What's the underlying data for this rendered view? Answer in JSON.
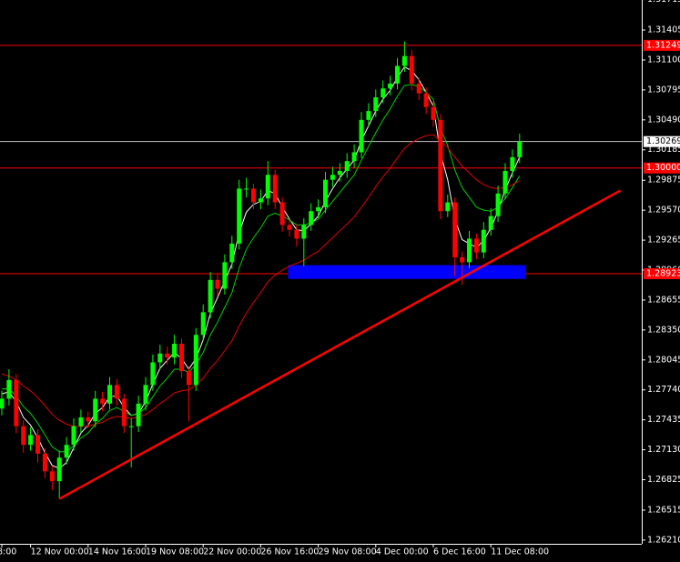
{
  "chart_data": {
    "type": "candlestick",
    "background": "#000000",
    "axis_color": "#ffffff",
    "up_color": "#00ff00",
    "down_color": "#ff0000",
    "categories": [
      "8:00",
      null,
      null,
      null,
      "12 Nov 00:00",
      null,
      null,
      null,
      null,
      null,
      null,
      null,
      "14 Nov 16:00",
      null,
      null,
      null,
      null,
      null,
      null,
      null,
      "19 Nov 08:00",
      null,
      null,
      null,
      null,
      null,
      null,
      null,
      "22 Nov 00:00",
      null,
      null,
      null,
      null,
      null,
      null,
      null,
      "26 Nov 16:00",
      null,
      null,
      null,
      null,
      null,
      null,
      null,
      "29 Nov 08:00",
      null,
      null,
      null,
      null,
      null,
      null,
      null,
      "4 Dec 00:00",
      null,
      null,
      null,
      null,
      null,
      null,
      null,
      "6 Dec 16:00",
      null,
      null,
      null,
      null,
      null,
      null,
      null,
      "11 Dec 08:00",
      null,
      null,
      null,
      null
    ],
    "open": [
      1.2755,
      1.2765,
      1.2784,
      1.2737,
      1.2718,
      1.2728,
      1.2709,
      1.2691,
      1.2681,
      1.2705,
      1.2718,
      1.2737,
      1.2746,
      1.2742,
      1.2765,
      1.276,
      1.2779,
      1.2765,
      1.2737,
      1.2737,
      1.276,
      1.2779,
      1.2802,
      1.2811,
      1.2807,
      1.2821,
      1.2793,
      1.2779,
      1.283,
      1.2853,
      1.2886,
      1.2877,
      1.2904,
      1.2923,
      1.2979,
      1.2979,
      1.2965,
      1.2969,
      1.2993,
      1.2965,
      1.2942,
      1.2937,
      1.2928,
      1.2942,
      1.2956,
      1.296,
      1.2988,
      1.2993,
      1.2997,
      1.3007,
      1.3016,
      1.3049,
      1.3058,
      1.3072,
      1.3081,
      1.3086,
      1.3104,
      1.3114,
      1.3086,
      1.3076,
      1.3062,
      1.3049,
      1.2956,
      1.2965,
      1.2909,
      1.2904,
      1.2928,
      1.2914,
      1.2937,
      1.2951,
      1.2974,
      1.2997,
      1.3011
    ],
    "high": [
      1.2773,
      1.2795,
      1.279,
      1.2743,
      1.2736,
      1.2734,
      1.2715,
      1.2697,
      1.2712,
      1.2726,
      1.2745,
      1.2754,
      1.2752,
      1.2773,
      1.2772,
      1.2787,
      1.2785,
      1.277,
      1.2745,
      1.2768,
      1.2787,
      1.281,
      1.282,
      1.2818,
      1.283,
      1.2826,
      1.2798,
      1.2837,
      1.2861,
      1.2894,
      1.2892,
      1.2912,
      1.2931,
      1.2988,
      1.299,
      1.2984,
      1.2978,
      1.3007,
      1.2998,
      1.297,
      1.2948,
      1.2943,
      1.2949,
      1.2964,
      1.2968,
      1.2996,
      1.3001,
      1.3005,
      1.3015,
      1.3024,
      1.3057,
      1.3066,
      1.308,
      1.3089,
      1.3094,
      1.3112,
      1.3129,
      1.312,
      1.3092,
      1.3082,
      1.3068,
      1.3055,
      1.2973,
      1.297,
      1.2915,
      1.2936,
      1.2933,
      1.2945,
      1.2959,
      1.2982,
      1.3005,
      1.3019,
      1.3035
    ],
    "low": [
      1.2748,
      1.2758,
      1.273,
      1.271,
      1.2712,
      1.27,
      1.2684,
      1.2672,
      1.2663,
      1.2698,
      1.2712,
      1.273,
      1.2735,
      1.2736,
      1.2752,
      1.2754,
      1.2758,
      1.273,
      1.2695,
      1.2731,
      1.2753,
      1.2773,
      1.2795,
      1.28,
      1.28,
      1.2786,
      1.2742,
      1.2773,
      1.2824,
      1.2847,
      1.2869,
      1.2871,
      1.2897,
      1.2917,
      1.297,
      1.2958,
      1.2958,
      1.2962,
      1.2958,
      1.2935,
      1.293,
      1.292,
      1.29,
      1.2936,
      1.2949,
      1.2954,
      1.2981,
      1.2986,
      1.299,
      1.3,
      1.301,
      1.3042,
      1.3052,
      1.3066,
      1.3074,
      1.308,
      1.3098,
      1.3079,
      1.3069,
      1.3055,
      1.3042,
      1.2948,
      1.295,
      1.289,
      1.2881,
      1.2898,
      1.2907,
      1.2908,
      1.2931,
      1.2945,
      1.2968,
      1.299,
      1.3005
    ],
    "close": [
      1.2765,
      1.2784,
      1.2737,
      1.2718,
      1.2728,
      1.2709,
      1.2691,
      1.2681,
      1.2705,
      1.2718,
      1.2737,
      1.2746,
      1.2742,
      1.2765,
      1.276,
      1.2779,
      1.2765,
      1.2737,
      1.2737,
      1.276,
      1.2779,
      1.2802,
      1.2811,
      1.2807,
      1.2821,
      1.2793,
      1.2779,
      1.283,
      1.2853,
      1.2886,
      1.2877,
      1.2904,
      1.2923,
      1.2979,
      1.2979,
      1.2965,
      1.2969,
      1.2993,
      1.2965,
      1.2942,
      1.2937,
      1.2928,
      1.2942,
      1.2956,
      1.296,
      1.2988,
      1.2993,
      1.2997,
      1.3007,
      1.3016,
      1.3049,
      1.3058,
      1.3072,
      1.3081,
      1.3086,
      1.3104,
      1.3114,
      1.3086,
      1.3076,
      1.3062,
      1.3049,
      1.2956,
      1.2965,
      1.2909,
      1.2904,
      1.2928,
      1.2914,
      1.2937,
      1.2951,
      1.2974,
      1.2997,
      1.3011,
      1.3027
    ],
    "lines": [
      {
        "color": "#ffffff",
        "values": [
          1.277,
          1.2772,
          1.2762,
          1.2746,
          1.2738,
          1.2725,
          1.271,
          1.2697,
          1.2694,
          1.27,
          1.2715,
          1.273,
          1.2738,
          1.275,
          1.2756,
          1.2767,
          1.2768,
          1.2756,
          1.2748,
          1.275,
          1.2762,
          1.278,
          1.2796,
          1.2804,
          1.2812,
          1.2806,
          1.2795,
          1.2806,
          1.2825,
          1.2852,
          1.2868,
          1.2885,
          1.2902,
          1.2934,
          1.2955,
          1.2963,
          1.2966,
          1.2977,
          1.2974,
          1.296,
          1.2948,
          1.2937,
          1.2936,
          1.2943,
          1.2951,
          1.2966,
          1.2979,
          1.299,
          1.2999,
          1.3008,
          1.3028,
          1.3043,
          1.3058,
          1.307,
          1.3079,
          1.3092,
          1.3103,
          1.3099,
          1.309,
          1.3077,
          1.3063,
          1.3015,
          1.2988,
          1.2948,
          1.2927,
          1.2923,
          1.2919,
          1.2926,
          1.2939,
          1.2956,
          1.2978,
          1.2995,
          1.3011
        ]
      },
      {
        "color": "#00d000",
        "values": [
          1.2775,
          1.2775,
          1.2768,
          1.2757,
          1.275,
          1.274,
          1.2728,
          1.2716,
          1.2711,
          1.2711,
          1.2717,
          1.2725,
          1.273,
          1.2739,
          1.2745,
          1.2753,
          1.2756,
          1.2752,
          1.2748,
          1.275,
          1.2756,
          1.2767,
          1.2778,
          1.2786,
          1.2795,
          1.2795,
          1.2792,
          1.28,
          1.2812,
          1.283,
          1.2843,
          1.2858,
          1.2873,
          1.2898,
          1.2917,
          1.2929,
          1.2939,
          1.2951,
          1.2954,
          1.2951,
          1.2947,
          1.2942,
          1.2942,
          1.2944,
          1.2948,
          1.2957,
          1.2966,
          1.2975,
          1.2984,
          1.2993,
          1.3008,
          1.3022,
          1.3036,
          1.3049,
          1.306,
          1.3073,
          1.3084,
          1.3085,
          1.3083,
          1.3077,
          1.307,
          1.304,
          1.3023,
          1.2998,
          1.298,
          1.297,
          1.296,
          1.2957,
          1.2956,
          1.296,
          1.2969,
          1.298,
          1.2992
        ]
      },
      {
        "color": "#e00000",
        "values": [
          1.279,
          1.2788,
          1.2784,
          1.2778,
          1.2773,
          1.2766,
          1.2758,
          1.2749,
          1.2743,
          1.2739,
          1.2737,
          1.2737,
          1.2737,
          1.2739,
          1.2741,
          1.2745,
          1.2747,
          1.2746,
          1.2745,
          1.2746,
          1.2749,
          1.2754,
          1.276,
          1.2765,
          1.2771,
          1.2773,
          1.2774,
          1.2779,
          1.2786,
          1.2796,
          1.2804,
          1.2814,
          1.2824,
          1.2839,
          1.2852,
          1.2863,
          1.2873,
          1.2884,
          1.2891,
          1.2896,
          1.29,
          1.2903,
          1.2906,
          1.2911,
          1.2915,
          1.2922,
          1.2929,
          1.2936,
          1.2943,
          1.295,
          1.296,
          1.297,
          1.2981,
          1.2991,
          1.3,
          1.301,
          1.302,
          1.3026,
          1.303,
          1.3033,
          1.3034,
          1.3027,
          1.3021,
          1.3011,
          1.3002,
          1.2995,
          1.2988,
          1.2983,
          1.298,
          1.2979,
          1.298,
          1.2983,
          1.2987
        ]
      }
    ],
    "ylim": [
      1.26172,
      1.31711
    ],
    "yticks": [
      1.31715,
      1.31405,
      {
        "value": 1.311,
        "label": "1.31100"
      },
      1.30795,
      {
        "value": 1.3049,
        "label": "1.30490"
      },
      1.30185,
      1.29875,
      {
        "value": 1.2957,
        "label": "1.29570"
      },
      1.29265,
      {
        "value": 1.2896,
        "label": "1.28960"
      },
      1.28655,
      {
        "value": 1.2835,
        "label": "1.28350"
      },
      1.28045,
      {
        "value": 1.2774,
        "label": "1.27740"
      },
      1.27435,
      {
        "value": 1.2713,
        "label": "1.27130"
      },
      1.26825,
      1.26515,
      {
        "value": 1.2621,
        "label": "1.26210"
      }
    ],
    "hlines": [
      {
        "value": 1.31249,
        "label": "1.31249",
        "color": "#ff0000"
      },
      {
        "value": 1.30269,
        "label": "1.30269",
        "color": "#c0c0c0"
      },
      {
        "value": 1.3,
        "label": "1.30000",
        "color": "#ff0000"
      },
      {
        "value": 1.28923,
        "label": "1.28923",
        "color": "#ff0000"
      }
    ],
    "trendline": {
      "x": [
        8,
        86
      ],
      "values": [
        1.2663,
        1.2977
      ],
      "color": "#ff0000"
    },
    "zone": {
      "x": [
        39.8,
        72.8
      ],
      "y": [
        1.2887,
        1.2901
      ],
      "color": "#0000ff"
    }
  }
}
